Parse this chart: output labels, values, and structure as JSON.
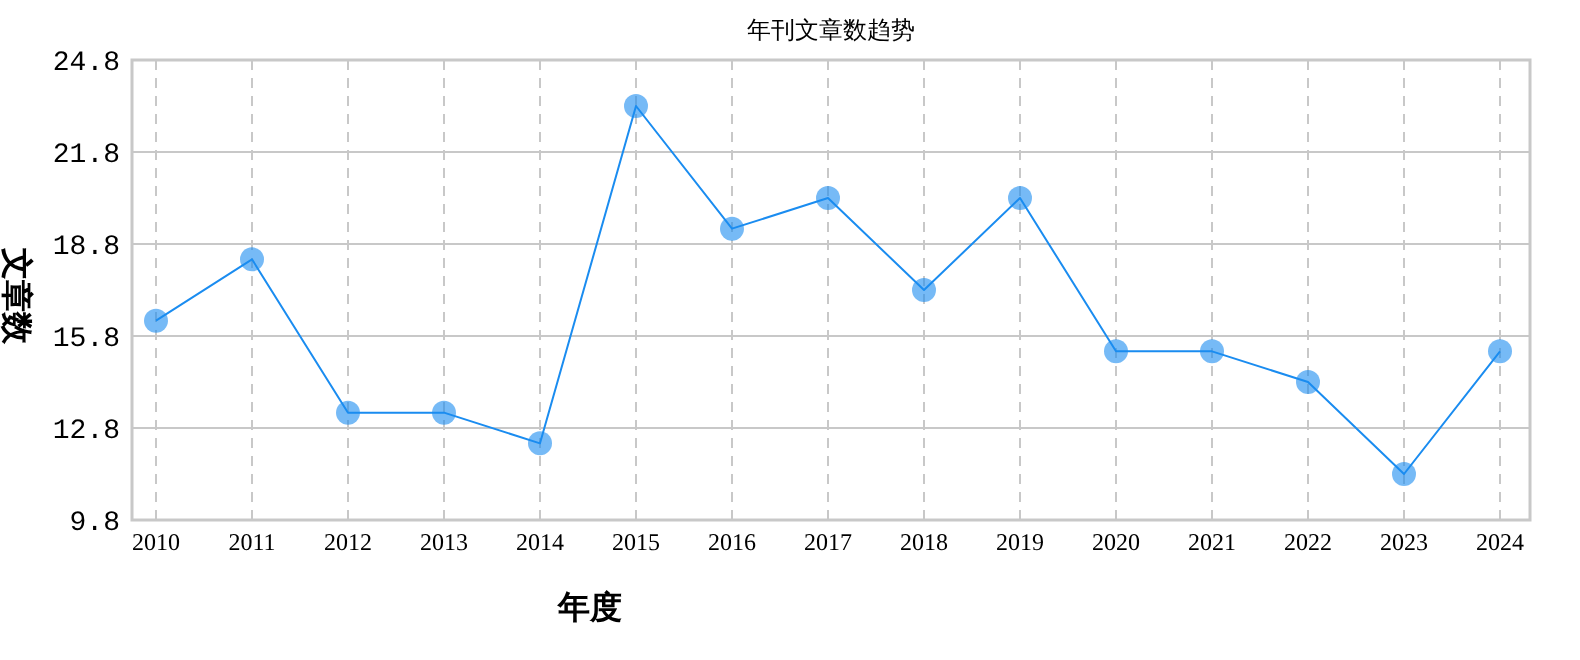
{
  "chart_data": {
    "type": "line",
    "title": "年刊文章数趋势",
    "xlabel": "年度",
    "ylabel": "文章数",
    "categories": [
      "2010",
      "2011",
      "2012",
      "2013",
      "2014",
      "2015",
      "2016",
      "2017",
      "2018",
      "2019",
      "2020",
      "2021",
      "2022",
      "2023",
      "2024"
    ],
    "series": [
      {
        "color": "#1a8cf0",
        "values": [
          16.3,
          18.3,
          13.3,
          13.3,
          12.3,
          23.3,
          19.3,
          20.3,
          17.3,
          20.3,
          15.3,
          15.3,
          14.3,
          11.3,
          15.3
        ]
      }
    ],
    "ylim": [
      9.8,
      24.8
    ],
    "yticks": [
      9.8,
      12.8,
      15.8,
      18.8,
      21.8,
      24.8
    ],
    "grid": true,
    "marker": "circle",
    "line_style": "solid"
  }
}
